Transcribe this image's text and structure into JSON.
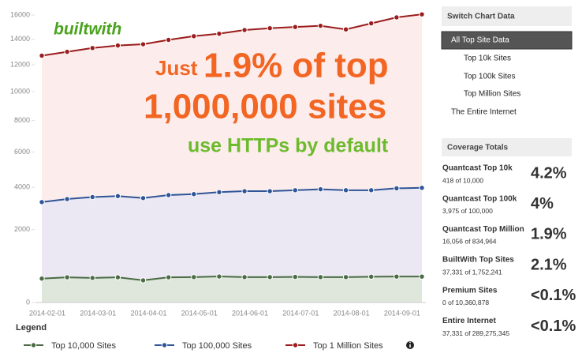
{
  "chart_data": {
    "type": "area-line",
    "logo": "builtwith",
    "annotations": [
      "Just",
      "1.9% of top",
      "1,000,000 sites",
      "use HTTPs by default"
    ],
    "categories": [
      "2014-02-01",
      null,
      "2014-03-01",
      null,
      "2014-04-01",
      null,
      "2014-05-01",
      null,
      "2014-06-01",
      null,
      "2014-07-01",
      null,
      "2014-08-01",
      null,
      "2014-09-01",
      null
    ],
    "ylim": [
      0,
      16000
    ],
    "scale": "pow",
    "exponent": 0.66,
    "yticks": [
      0,
      2000,
      4000,
      6000,
      8000,
      10000,
      12000,
      14000,
      16000
    ],
    "legend_title": "Legend",
    "series": [
      {
        "name": "Top 1 Million Sites",
        "color": "#9b1c1c",
        "fill": "#fcecec",
        "values": [
          12700,
          13000,
          13300,
          13500,
          13600,
          13950,
          14250,
          14450,
          14750,
          14900,
          15000,
          15100,
          14800,
          15300,
          15800,
          16056
        ]
      },
      {
        "name": "Top 100,000 Sites",
        "color": "#2f5597",
        "fill": "#ebe8f3",
        "values": [
          3250,
          3400,
          3500,
          3550,
          3450,
          3600,
          3650,
          3750,
          3800,
          3800,
          3850,
          3900,
          3850,
          3850,
          3950,
          3975
        ]
      },
      {
        "name": "Top 10,000 Sites",
        "color": "#4a6b44",
        "fill": "#dfe6dc",
        "values": [
          370,
          400,
          385,
          400,
          330,
          400,
          405,
          420,
          405,
          405,
          410,
          405,
          405,
          415,
          418,
          418
        ]
      }
    ],
    "legend_order": [
      2,
      1,
      0
    ]
  },
  "sidebar": {
    "switch_title": "Switch Chart Data",
    "options": [
      "All Top Site Data",
      "Top 10k Sites",
      "Top 100k Sites",
      "Top Million Sites",
      "The Entire Internet"
    ],
    "selected": 0,
    "coverage_title": "Coverage Totals",
    "coverage": [
      {
        "label": "Quantcast Top 10k",
        "detail": "418 of 10,000",
        "value": "4.2%"
      },
      {
        "label": "Quantcast Top 100k",
        "detail": "3,975 of 100,000",
        "value": "4%"
      },
      {
        "label": "Quantcast Top Million",
        "detail": "16,056 of 834,964",
        "value": "1.9%"
      },
      {
        "label": "BuiltWith Top Sites",
        "detail": "37,331 of 1,752,241",
        "value": "2.1%"
      },
      {
        "label": "Premium Sites",
        "detail": "0 of 10,360,878",
        "value": "<0.1%"
      },
      {
        "label": "Entire Internet",
        "detail": "37,331 of 289,275,345",
        "value": "<0.1%"
      }
    ]
  }
}
